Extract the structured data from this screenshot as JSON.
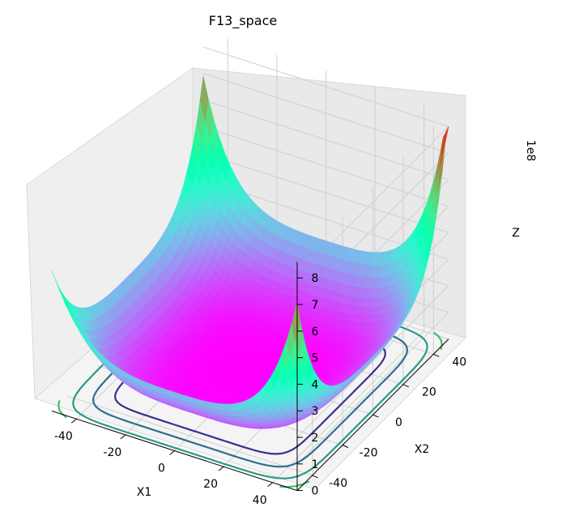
{
  "chart_data": {
    "type": "surface",
    "title": "F13_space",
    "xlabel": "X1",
    "ylabel": "X2",
    "zlabel": "Z",
    "z_multiplier": "1e8",
    "x_ticks": [
      "-40",
      "-20",
      "0",
      "20",
      "40"
    ],
    "y_ticks": [
      "-40",
      "-20",
      "0",
      "20",
      "40"
    ],
    "z_ticks": [
      "0",
      "1",
      "2",
      "3",
      "4",
      "5",
      "6",
      "7",
      "8"
    ],
    "xlim": [
      -50,
      50
    ],
    "ylim": [
      -50,
      50
    ],
    "zlim": [
      0,
      8
    ],
    "z_unit_scale": 100000000,
    "colormap": "rainbow",
    "grid": true,
    "contours": "filled-plane at z=0 showing projected level sets",
    "surface_peaks": [
      {
        "x1": 50,
        "x2": 50,
        "z": 7.9
      },
      {
        "x1": -50,
        "x2": 50,
        "z": 6.0
      },
      {
        "x1": 50,
        "x2": -50,
        "z": 6.2
      },
      {
        "x1": -50,
        "x2": -50,
        "z": 2.6
      }
    ],
    "surface_minimum": {
      "x1": 0,
      "x2": 0,
      "z": 0.0
    }
  }
}
